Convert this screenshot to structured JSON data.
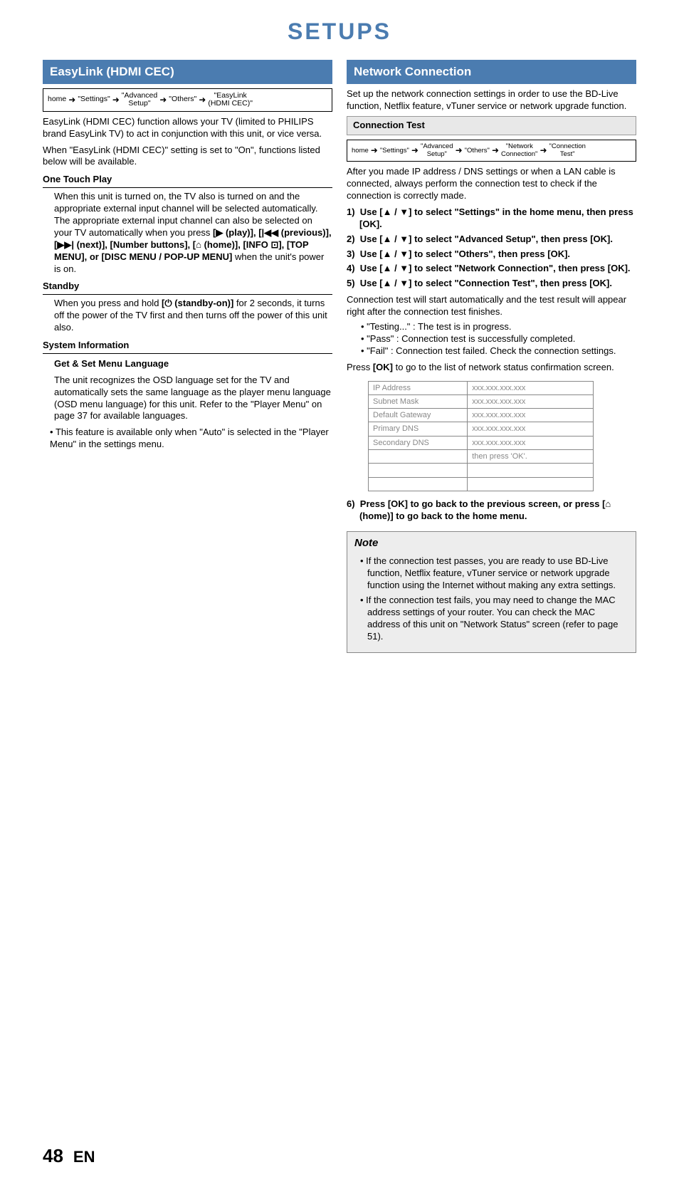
{
  "page": {
    "title": "SETUPS",
    "number": "48",
    "lang": "EN"
  },
  "left": {
    "heading": "EasyLink (HDMI CEC)",
    "breadcrumb": [
      "home",
      "\"Settings\"",
      "\"Advanced\nSetup\"",
      "\"Others\"",
      "\"EasyLink\n(HDMI CEC)\""
    ],
    "intro1": "EasyLink (HDMI CEC) function allows your TV (limited to PHILIPS brand EasyLink TV) to act in conjunction with this unit, or vice versa.",
    "intro2": "When \"EasyLink (HDMI CEC)\" setting is set to \"On\", functions listed below will be available.",
    "otp_heading": "One Touch Play",
    "otp_body1": "When this unit is turned on, the TV also is turned on and the appropriate external input channel will be selected automatically. The appropriate external input channel can also be selected on your TV automatically when you press ",
    "otp_buttons": "[▶ (play)], [|◀◀ (previous)], [▶▶| (next)], [Number buttons], [⌂ (home)], [INFO ⊡], [TOP MENU], or [DISC MENU / POP-UP MENU]",
    "otp_body2": " when the unit's power is on.",
    "standby_heading": "Standby",
    "standby_body_a": "When you press and hold ",
    "standby_btn": "[⏻ (standby-on)]",
    "standby_body_b": " for 2 seconds, it turns off the power of the TV first and then turns off the power of this unit also.",
    "sys_heading": "System Information",
    "sys_sub": "Get & Set Menu Language",
    "sys_body": "The unit recognizes the OSD language set for the TV and automatically sets the same language as the player menu language (OSD menu language) for this unit. Refer to the \"Player Menu\" on page 37 for available languages.",
    "sys_note": "This feature is available only when \"Auto\" is selected in the \"Player Menu\" in the settings menu."
  },
  "right": {
    "heading": "Network Connection",
    "intro": "Set up the network connection settings in order to use the BD-Live function, Netflix feature, vTuner service or network upgrade function.",
    "ct_heading": "Connection Test",
    "breadcrumb": [
      "home",
      "\"Settings\"",
      "\"Advanced\nSetup\"",
      "\"Others\"",
      "\"Network\nConnection\"",
      "\"Connection\nTest\""
    ],
    "ct_intro": "After you made IP address / DNS settings or when a LAN cable is connected, always perform the connection test to check if the connection is correctly made.",
    "steps": [
      "Use [▲ / ▼] to select \"Settings\" in the home menu, then press [OK].",
      "Use [▲ / ▼] to select \"Advanced Setup\", then press [OK].",
      "Use [▲ / ▼] to select \"Others\", then press [OK].",
      "Use [▲ / ▼] to select \"Network Connection\", then press [OK].",
      "Use [▲ / ▼] to select \"Connection Test\", then press [OK]."
    ],
    "ct_result_intro": "Connection test will start automatically and the test result will appear right after the connection test finishes.",
    "results": [
      "\"Testing...\" : The test is in progress.",
      "\"Pass\" : Connection test is successfully completed.",
      "\"Fail\" : Connection test failed. Check the connection settings."
    ],
    "press_ok_a": "Press ",
    "press_ok_b": "[OK]",
    "press_ok_c": " to go to the list of network status confirmation screen.",
    "table_rows": [
      [
        "IP Address",
        "xxx.xxx.xxx.xxx"
      ],
      [
        "Subnet Mask",
        "xxx.xxx.xxx.xxx"
      ],
      [
        "Default Gateway",
        "xxx.xxx.xxx.xxx"
      ],
      [
        "Primary DNS",
        "xxx.xxx.xxx.xxx"
      ],
      [
        "Secondary DNS",
        "xxx.xxx.xxx.xxx"
      ],
      [
        "",
        "then press 'OK'."
      ],
      [
        "",
        ""
      ],
      [
        "",
        ""
      ]
    ],
    "step6": "Press [OK] to go back to the previous screen, or press [⌂ (home)] to go back to the home menu.",
    "note_title": "Note",
    "notes": [
      "If the connection test passes, you are ready to use BD-Live function, Netflix feature, vTuner service or network upgrade function using the Internet without making any extra settings.",
      "If the connection test fails, you may need to change the MAC address settings of your router. You can check the MAC address of this unit on \"Network Status\" screen (refer to page 51)."
    ]
  },
  "style": {
    "accent": "#4b7cb0",
    "sub_bg": "#e8e8e8",
    "note_bg": "#ededed",
    "table_border": "#888888",
    "table_text": "#888888"
  }
}
